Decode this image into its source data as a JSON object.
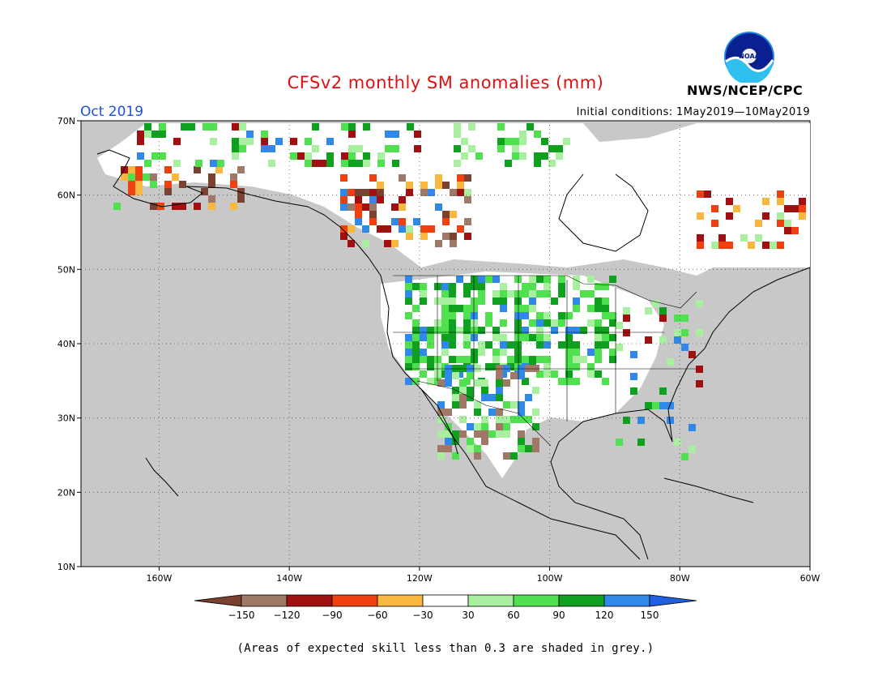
{
  "title": "CFSv2 monthly SM anomalies (mm)",
  "valid_month": "Oct 2019",
  "initial_conditions": "Initial conditions: 1May2019—10May2019",
  "agency": "NWS/NCEP/CPC",
  "logo_text": "NOAA",
  "footnote": "(Areas of expected skill less than 0.3 are shaded in grey.)",
  "map": {
    "lon_range": [
      -172,
      -60
    ],
    "lat_range": [
      10,
      70
    ],
    "lat_labels": [
      "70N",
      "60N",
      "50N",
      "40N",
      "30N",
      "20N",
      "10N"
    ],
    "lon_labels": [
      "160W",
      "140W",
      "120W",
      "100W",
      "80W",
      "60W"
    ],
    "grid_style": "dotted"
  },
  "colorbar": {
    "labels": [
      "−150",
      "−120",
      "−90",
      "−60",
      "−30",
      "30",
      "60",
      "90",
      "120",
      "150"
    ],
    "colors": [
      "#7a4030",
      "#a07868",
      "#a01010",
      "#f04010",
      "#f8b840",
      "#ffffff",
      "#a8f0a0",
      "#50e050",
      "#10a020",
      "#3088e8",
      "#2060e0"
    ]
  }
}
